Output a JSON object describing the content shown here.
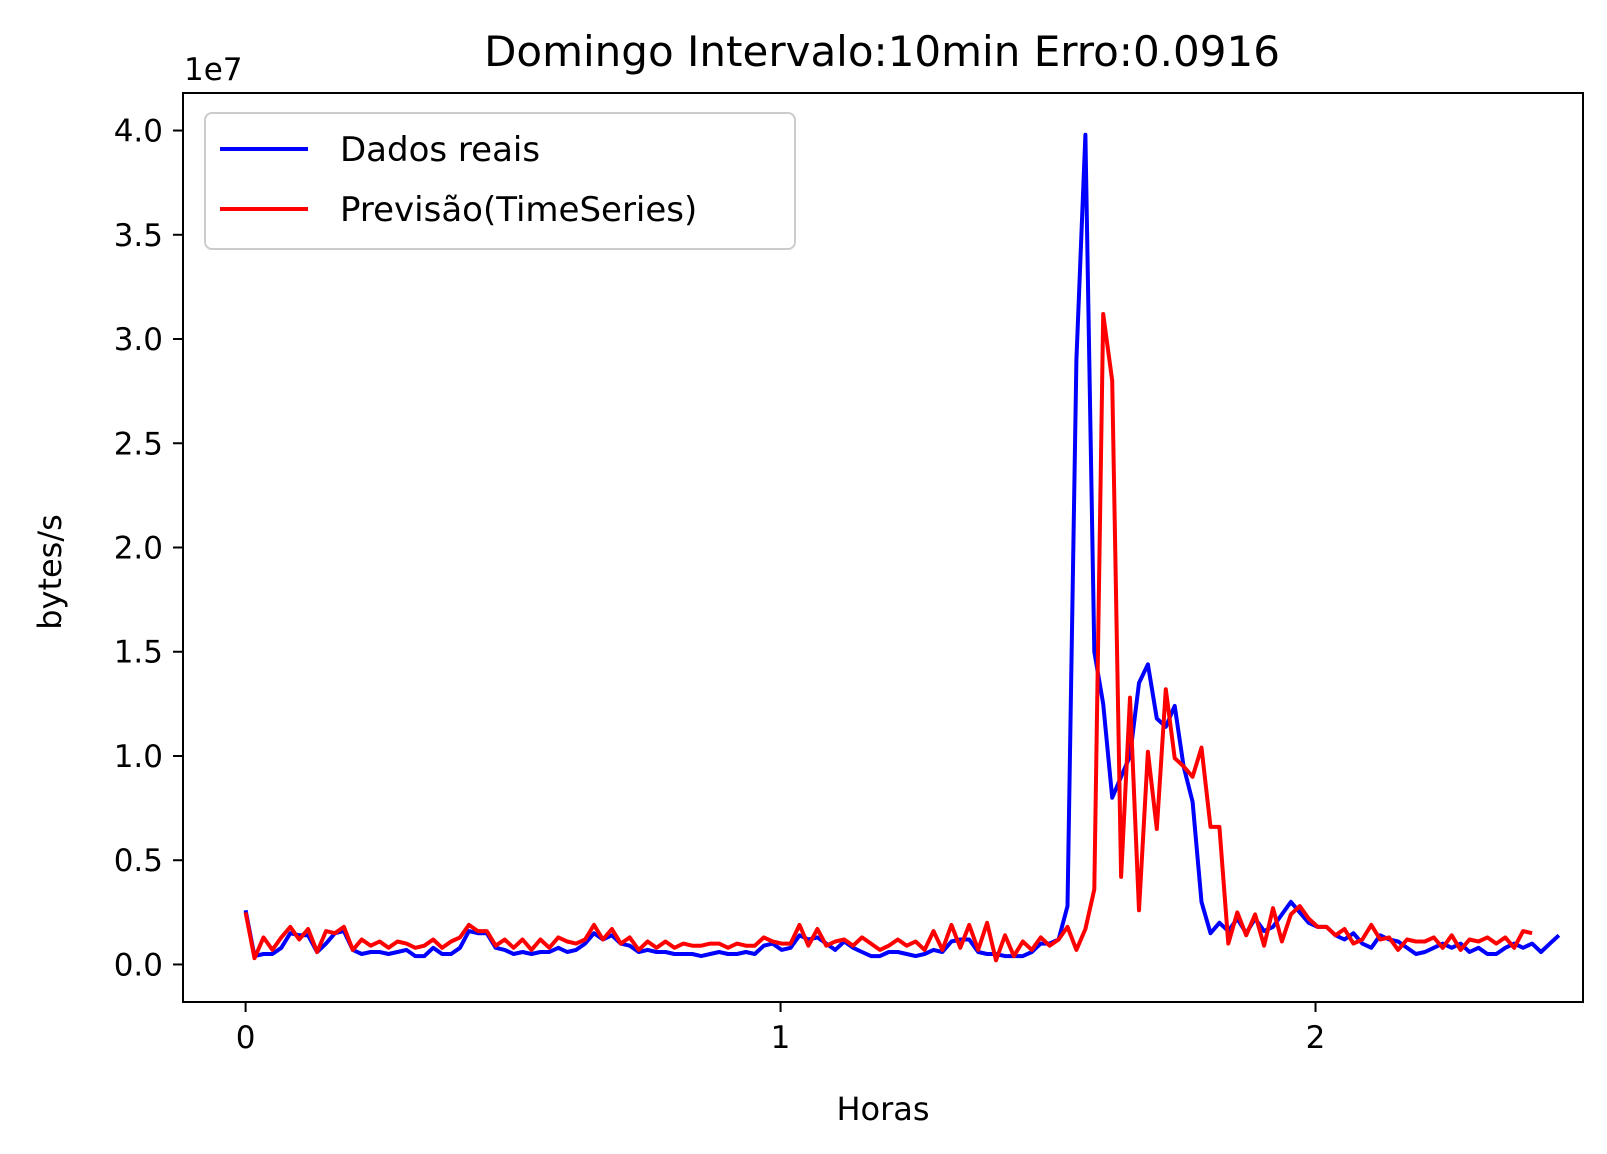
{
  "chart_data": {
    "type": "line",
    "title": "Domingo Intervalo:10min Erro:0.0916",
    "xlabel": "Horas",
    "ylabel": "bytes/s",
    "y_offset_label": "1e7",
    "xlim": [
      -0.117,
      2.5
    ],
    "ylim": [
      -0.18,
      4.18
    ],
    "x_ticks": [
      0,
      1,
      2
    ],
    "x_tick_labels": [
      "0",
      "1",
      "2"
    ],
    "y_ticks": [
      0,
      0.5,
      1,
      1.5,
      2,
      2.5,
      3,
      3.5,
      4
    ],
    "y_tick_labels": [
      "0.0",
      "0.5",
      "1.0",
      "1.5",
      "2.0",
      "2.5",
      "3.0",
      "3.5",
      "4.0"
    ],
    "grid": false,
    "legend_position": "upper-left",
    "x_step": 0.0167,
    "series": [
      {
        "name": "Dados reais",
        "color": "#0000ff",
        "values": [
          0.26,
          0.04,
          0.05,
          0.05,
          0.08,
          0.15,
          0.14,
          0.14,
          0.06,
          0.1,
          0.15,
          0.16,
          0.07,
          0.05,
          0.06,
          0.06,
          0.05,
          0.06,
          0.07,
          0.04,
          0.04,
          0.08,
          0.05,
          0.05,
          0.08,
          0.16,
          0.15,
          0.15,
          0.08,
          0.07,
          0.05,
          0.06,
          0.05,
          0.06,
          0.06,
          0.08,
          0.06,
          0.07,
          0.1,
          0.15,
          0.12,
          0.14,
          0.1,
          0.09,
          0.06,
          0.07,
          0.06,
          0.06,
          0.05,
          0.05,
          0.05,
          0.04,
          0.05,
          0.06,
          0.05,
          0.05,
          0.06,
          0.05,
          0.09,
          0.1,
          0.07,
          0.08,
          0.14,
          0.12,
          0.13,
          0.1,
          0.07,
          0.11,
          0.08,
          0.06,
          0.04,
          0.04,
          0.06,
          0.06,
          0.05,
          0.04,
          0.05,
          0.07,
          0.06,
          0.11,
          0.12,
          0.12,
          0.06,
          0.05,
          0.05,
          0.04,
          0.04,
          0.04,
          0.06,
          0.1,
          0.1,
          0.12,
          0.28,
          2.9,
          3.98,
          1.5,
          1.25,
          0.8,
          0.9,
          1.0,
          1.35,
          1.44,
          1.18,
          1.14,
          1.24,
          0.95,
          0.78,
          0.3,
          0.15,
          0.2,
          0.16,
          0.22,
          0.15,
          0.22,
          0.16,
          0.18,
          0.24,
          0.3,
          0.25,
          0.2,
          0.18,
          0.18,
          0.14,
          0.12,
          0.15,
          0.1,
          0.08,
          0.14,
          0.12,
          0.11,
          0.08,
          0.05,
          0.06,
          0.08,
          0.1,
          0.08,
          0.1,
          0.06,
          0.08,
          0.05,
          0.05,
          0.08,
          0.1,
          0.08,
          0.1,
          0.06,
          0.1,
          0.14
        ]
      },
      {
        "name": "Previsão(TimeSeries)",
        "color": "#ff0000",
        "values": [
          0.25,
          0.03,
          0.13,
          0.07,
          0.13,
          0.18,
          0.12,
          0.17,
          0.06,
          0.16,
          0.15,
          0.18,
          0.07,
          0.12,
          0.09,
          0.11,
          0.08,
          0.11,
          0.1,
          0.08,
          0.09,
          0.12,
          0.08,
          0.11,
          0.13,
          0.19,
          0.16,
          0.16,
          0.09,
          0.12,
          0.08,
          0.12,
          0.07,
          0.12,
          0.08,
          0.13,
          0.11,
          0.1,
          0.12,
          0.19,
          0.12,
          0.17,
          0.1,
          0.13,
          0.07,
          0.11,
          0.08,
          0.11,
          0.08,
          0.1,
          0.09,
          0.09,
          0.1,
          0.1,
          0.08,
          0.1,
          0.09,
          0.09,
          0.13,
          0.11,
          0.1,
          0.1,
          0.19,
          0.09,
          0.17,
          0.09,
          0.11,
          0.12,
          0.09,
          0.13,
          0.1,
          0.07,
          0.09,
          0.12,
          0.09,
          0.11,
          0.07,
          0.16,
          0.07,
          0.19,
          0.08,
          0.19,
          0.07,
          0.2,
          0.02,
          0.14,
          0.04,
          0.11,
          0.07,
          0.13,
          0.09,
          0.12,
          0.18,
          0.07,
          0.17,
          0.36,
          3.12,
          2.8,
          0.42,
          1.28,
          0.26,
          1.02,
          0.65,
          1.32,
          0.99,
          0.95,
          0.9,
          1.04,
          0.66,
          0.66,
          0.1,
          0.25,
          0.14,
          0.24,
          0.09,
          0.27,
          0.11,
          0.24,
          0.28,
          0.22,
          0.18,
          0.18,
          0.14,
          0.17,
          0.1,
          0.12,
          0.19,
          0.12,
          0.13,
          0.07,
          0.12,
          0.11,
          0.11,
          0.13,
          0.08,
          0.14,
          0.07,
          0.12,
          0.11,
          0.13,
          0.1,
          0.13,
          0.08,
          0.16,
          0.15
        ]
      }
    ]
  }
}
